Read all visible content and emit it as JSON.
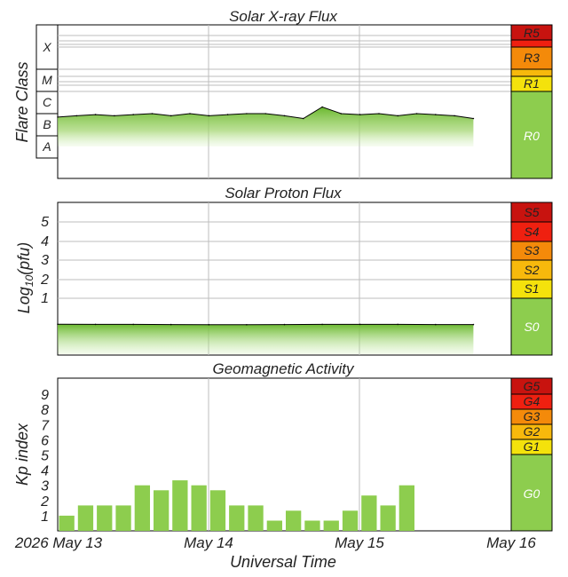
{
  "xaxis": {
    "label": "Universal Time",
    "ticks": [
      "2026 May 13",
      "May 14",
      "May 15",
      "May 16"
    ]
  },
  "colors": {
    "level0": "#8dcd4e",
    "level1": "#f4e20c",
    "level2": "#f7b90c",
    "level3": "#f48a0a",
    "level4": "#ef2010",
    "level5": "#c8130f",
    "grid": "#bdbdbd",
    "frame": "#000000",
    "data_line": "#000000"
  },
  "chart_data": [
    {
      "type": "area",
      "title": "Solar X-ray Flux",
      "ylabel": "Flare Class",
      "y_scale": "log",
      "y_categories": [
        "A",
        "B",
        "C",
        "M",
        "X"
      ],
      "x_range": [
        "2026-05-13 00:00",
        "2026-05-16 00:00"
      ],
      "x": [
        "05-13 00:00",
        "05-13 03:00",
        "05-13 06:00",
        "05-13 09:00",
        "05-13 12:00",
        "05-13 15:00",
        "05-13 18:00",
        "05-13 21:00",
        "05-14 00:00",
        "05-14 03:00",
        "05-14 06:00",
        "05-14 09:00",
        "05-14 12:00",
        "05-14 15:00",
        "05-14 18:00",
        "05-14 21:00",
        "05-15 00:00",
        "05-15 03:00",
        "05-15 06:00",
        "05-15 09:00",
        "05-15 12:00",
        "05-15 15:00",
        "05-15 18:00"
      ],
      "values": [
        "B7",
        "B8",
        "B9",
        "B8",
        "B9",
        "C1",
        "B8",
        "C1",
        "B8",
        "B9",
        "C1",
        "C1",
        "B8",
        "B6",
        "C2",
        "C1",
        "B9",
        "C1",
        "B8",
        "C1",
        "B9",
        "B8",
        "B6"
      ],
      "scale_labels": [
        "R5",
        "R3",
        "R1",
        "R0"
      ]
    },
    {
      "type": "area",
      "title": "Solar Proton Flux",
      "ylabel": "Log10(pfu)",
      "ylim": [
        -1,
        6
      ],
      "y_ticks": [
        1,
        2,
        3,
        4,
        5
      ],
      "x_range": [
        "2026-05-13 00:00",
        "2026-05-16 00:00"
      ],
      "x": [
        "05-13 00:00",
        "05-13 06:00",
        "05-13 12:00",
        "05-13 18:00",
        "05-14 00:00",
        "05-14 06:00",
        "05-14 12:00",
        "05-14 18:00",
        "05-15 00:00",
        "05-15 06:00",
        "05-15 12:00",
        "05-15 18:00"
      ],
      "values": [
        -0.35,
        -0.36,
        -0.36,
        -0.37,
        -0.38,
        -0.38,
        -0.37,
        -0.36,
        -0.36,
        -0.36,
        -0.37,
        -0.37
      ],
      "scale_labels": [
        "S5",
        "S4",
        "S3",
        "S2",
        "S1",
        "S0"
      ]
    },
    {
      "type": "bar",
      "title": "Geomagnetic Activity",
      "ylabel": "Kp index",
      "ylim": [
        0,
        9.5
      ],
      "y_ticks": [
        1,
        2,
        3,
        4,
        5,
        6,
        7,
        8,
        9
      ],
      "x_range": [
        "2026-05-13 00:00",
        "2026-05-16 00:00"
      ],
      "categories": [
        "05-13 00-03",
        "05-13 03-06",
        "05-13 06-09",
        "05-13 09-12",
        "05-13 12-15",
        "05-13 15-18",
        "05-13 18-21",
        "05-13 21-24",
        "05-14 00-03",
        "05-14 03-06",
        "05-14 06-09",
        "05-14 09-12",
        "05-14 12-15",
        "05-14 15-18",
        "05-14 18-21",
        "05-14 21-24",
        "05-15 00-03",
        "05-15 03-06",
        "05-15 06-09",
        "05-15 09-12",
        "05-15 12-15",
        "05-15 15-18",
        "05-15 18-21",
        "05-15 21-24"
      ],
      "values": [
        1,
        1.67,
        1.67,
        1.67,
        3,
        2.67,
        3.33,
        3,
        2.67,
        1.67,
        1.67,
        0.67,
        1.33,
        0.67,
        0.67,
        1.33,
        2.33,
        1.67,
        3,
        null,
        null,
        null,
        null,
        null
      ],
      "scale_labels": [
        "G5",
        "G4",
        "G3",
        "G2",
        "G1",
        "G0"
      ]
    }
  ]
}
